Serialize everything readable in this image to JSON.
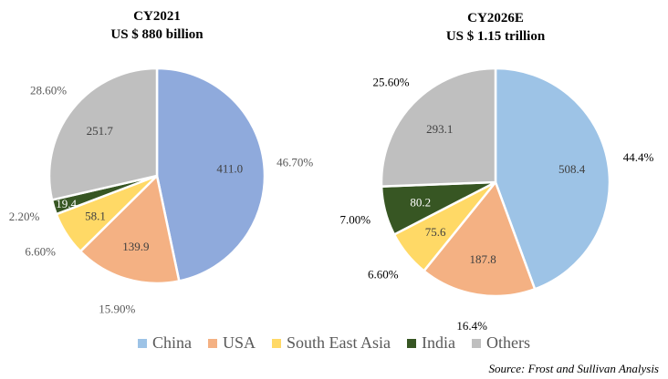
{
  "chart_data": [
    {
      "type": "pie",
      "title": "CY2021",
      "subtitle": "US $ 880 billion",
      "categories": [
        "China",
        "USA",
        "South East Asia",
        "India",
        "Others"
      ],
      "values": [
        411.0,
        139.9,
        58.1,
        19.4,
        251.7
      ],
      "value_labels": [
        "411.0",
        "139.9",
        "58.1",
        "19.4",
        "251.7"
      ],
      "percent_labels": [
        "46.70%",
        "15.90%",
        "6.60%",
        "2.20%",
        "28.60%"
      ],
      "colors": [
        "#8FAADC",
        "#F4B183",
        "#FFD966",
        "#375623",
        "#BFBFBF"
      ]
    },
    {
      "type": "pie",
      "title": "CY2026E",
      "subtitle": "US $ 1.15 trillion",
      "categories": [
        "China",
        "USA",
        "South East Asia",
        "India",
        "Others"
      ],
      "values": [
        508.4,
        187.8,
        75.6,
        80.2,
        293.1
      ],
      "value_labels": [
        "508.4",
        "187.8",
        "75.6",
        "80.2",
        "293.1"
      ],
      "percent_labels": [
        "44.4%",
        "16.4%",
        "6.60%",
        "7.00%",
        "25.60%"
      ],
      "colors": [
        "#9DC3E6",
        "#F4B183",
        "#FFD966",
        "#375623",
        "#BFBFBF"
      ]
    }
  ],
  "legend": [
    {
      "label": "China",
      "color": "#9DC3E6"
    },
    {
      "label": "USA",
      "color": "#F4B183"
    },
    {
      "label": "South East Asia",
      "color": "#FFD966"
    },
    {
      "label": "India",
      "color": "#375623"
    },
    {
      "label": "Others",
      "color": "#BFBFBF"
    }
  ],
  "source": "Source: Frost and Sullivan Analysis"
}
